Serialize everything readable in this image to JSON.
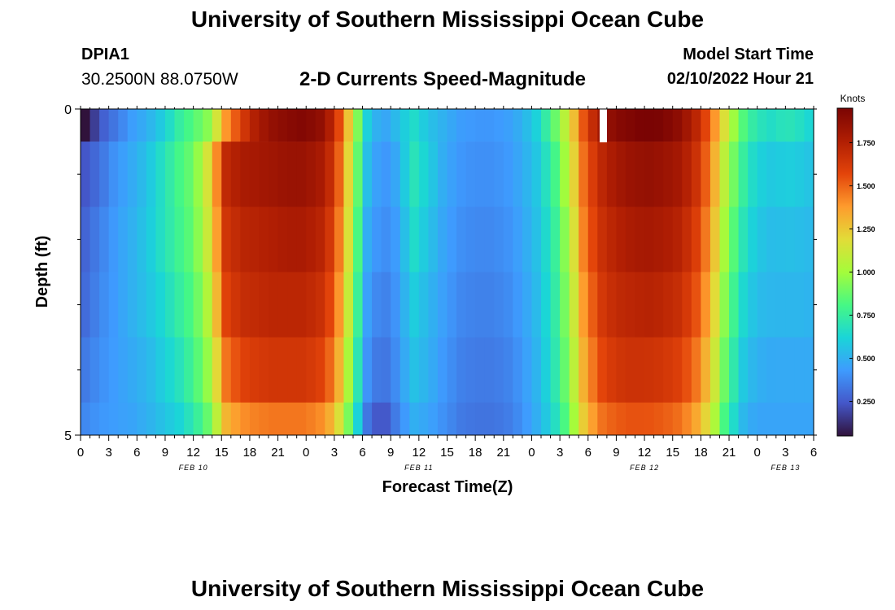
{
  "header": {
    "title": "University of Southern Mississippi Ocean Cube",
    "station": "DPIA1",
    "coords": "30.2500N  88.0750W",
    "variable": "2-D Currents Speed-Magnitude",
    "model_start_label": "Model Start Time",
    "model_start_value": "02/10/2022 Hour 21"
  },
  "footer": {
    "title": "University of Southern Mississippi Ocean Cube"
  },
  "chart_data": {
    "type": "heatmap",
    "title": "2-D Currents Speed-Magnitude",
    "xlabel": "Forecast Time(Z)",
    "ylabel": "Depth (ft)",
    "x_hours": [
      0,
      78
    ],
    "ylim": [
      0,
      5
    ],
    "y_tick_labels": [
      "0",
      "5"
    ],
    "x_tick_labels": [
      "0",
      "3",
      "6",
      "9",
      "12",
      "15",
      "18",
      "21",
      "0",
      "3",
      "6",
      "9",
      "12",
      "15",
      "18",
      "21",
      "0",
      "3",
      "6",
      "9",
      "12",
      "15",
      "18",
      "21",
      "0",
      "3",
      "6"
    ],
    "date_labels": [
      {
        "text": "FEB 10",
        "hour": 12
      },
      {
        "text": "FEB 11",
        "hour": 36
      },
      {
        "text": "FEB 12",
        "hour": 60
      },
      {
        "text": "FEB 13",
        "hour": 75
      }
    ],
    "colorbar": {
      "label": "Knots",
      "range": [
        0.05,
        1.95
      ],
      "ticks": [
        "1.750",
        "1.500",
        "1.250",
        "1.000",
        "0.750",
        "0.500",
        "0.250"
      ],
      "tick_values": [
        1.75,
        1.5,
        1.25,
        1.0,
        0.75,
        0.5,
        0.25
      ]
    },
    "layers": [
      "0-0.5 ft",
      "0.5-1.5 ft",
      "1.5-2.5 ft",
      "2.5-3.5 ft",
      "3.5-4.5 ft",
      "4.5-5 ft"
    ],
    "speed_knots_by_hour": [
      [
        0.05,
        0.25,
        0.34,
        0.44,
        0.5,
        0.6,
        0.74,
        0.84,
        0.96,
        1.38,
        1.6,
        1.78,
        1.86,
        1.9,
        1.92,
        1.88,
        1.7,
        1.2,
        0.62,
        0.44,
        0.54,
        0.66,
        0.56,
        0.5,
        0.44,
        0.42,
        0.42,
        0.44,
        0.5,
        0.62,
        0.84,
        1.14,
        1.56,
        1.8,
        1.9,
        1.93,
        1.96,
        1.94,
        1.88,
        1.76,
        1.52,
        1.16,
        0.86,
        0.7,
        0.66,
        0.7,
        0.66,
        0.58
      ],
      [
        0.24,
        0.32,
        0.42,
        0.48,
        0.56,
        0.68,
        0.8,
        0.9,
        1.2,
        1.7,
        1.78,
        1.8,
        1.82,
        1.84,
        1.84,
        1.8,
        1.64,
        1.14,
        0.56,
        0.4,
        0.48,
        0.7,
        0.6,
        0.48,
        0.42,
        0.4,
        0.4,
        0.42,
        0.48,
        0.58,
        0.76,
        1.08,
        1.5,
        1.7,
        1.8,
        1.84,
        1.86,
        1.84,
        1.8,
        1.7,
        1.46,
        1.06,
        0.78,
        0.62,
        0.58,
        0.6,
        0.58,
        0.54
      ],
      [
        0.28,
        0.36,
        0.44,
        0.5,
        0.58,
        0.68,
        0.78,
        0.88,
        1.16,
        1.64,
        1.72,
        1.74,
        1.76,
        1.78,
        1.78,
        1.74,
        1.58,
        1.1,
        0.5,
        0.38,
        0.44,
        0.66,
        0.56,
        0.46,
        0.4,
        0.38,
        0.38,
        0.4,
        0.46,
        0.56,
        0.72,
        1.02,
        1.46,
        1.66,
        1.74,
        1.78,
        1.8,
        1.78,
        1.74,
        1.64,
        1.4,
        1.0,
        0.72,
        0.58,
        0.54,
        0.55,
        0.54,
        0.52
      ],
      [
        0.3,
        0.38,
        0.44,
        0.5,
        0.56,
        0.64,
        0.74,
        0.84,
        1.08,
        1.58,
        1.68,
        1.7,
        1.72,
        1.72,
        1.72,
        1.68,
        1.52,
        1.04,
        0.46,
        0.34,
        0.42,
        0.6,
        0.52,
        0.44,
        0.38,
        0.36,
        0.36,
        0.38,
        0.44,
        0.54,
        0.7,
        0.98,
        1.4,
        1.62,
        1.7,
        1.72,
        1.74,
        1.72,
        1.68,
        1.58,
        1.34,
        0.94,
        0.66,
        0.54,
        0.52,
        0.52,
        0.52,
        0.5
      ],
      [
        0.34,
        0.4,
        0.44,
        0.48,
        0.52,
        0.6,
        0.68,
        0.8,
        1.0,
        1.46,
        1.58,
        1.62,
        1.64,
        1.64,
        1.64,
        1.6,
        1.44,
        0.96,
        0.42,
        0.3,
        0.4,
        0.56,
        0.5,
        0.42,
        0.36,
        0.34,
        0.34,
        0.36,
        0.42,
        0.52,
        0.68,
        0.94,
        1.34,
        1.56,
        1.64,
        1.66,
        1.66,
        1.64,
        1.6,
        1.5,
        1.26,
        0.88,
        0.6,
        0.5,
        0.48,
        0.48,
        0.48,
        0.48
      ],
      [
        0.38,
        0.42,
        0.44,
        0.46,
        0.5,
        0.56,
        0.62,
        0.72,
        0.9,
        1.3,
        1.4,
        1.44,
        1.46,
        1.46,
        1.46,
        1.42,
        1.28,
        0.86,
        0.34,
        0.2,
        0.36,
        0.5,
        0.46,
        0.4,
        0.34,
        0.32,
        0.32,
        0.34,
        0.4,
        0.5,
        0.64,
        0.88,
        1.26,
        1.46,
        1.52,
        1.54,
        1.54,
        1.52,
        1.48,
        1.38,
        1.16,
        0.8,
        0.54,
        0.46,
        0.46,
        0.46,
        0.46,
        0.46
      ]
    ]
  }
}
